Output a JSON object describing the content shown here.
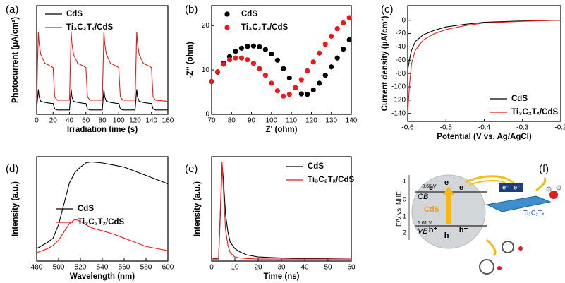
{
  "chart_data": [
    {
      "type": "line",
      "panel": "(a)",
      "xlabel": "Irradiation time (s)",
      "ylabel": "Photocurrent (μA/cm²)",
      "xlim": [
        0,
        160
      ],
      "ylim": [
        0,
        100
      ],
      "xticks": [
        0,
        20,
        40,
        60,
        80,
        100,
        120,
        140,
        160
      ],
      "legend": "upper left",
      "x": [
        0,
        2,
        3,
        5,
        10,
        18,
        20,
        22,
        25,
        40,
        42,
        43,
        45,
        50,
        58,
        60,
        62,
        65,
        80,
        82,
        83,
        85,
        90,
        98,
        100,
        102,
        105,
        120,
        122,
        123,
        125,
        130,
        138,
        140,
        142,
        145,
        160
      ],
      "series": [
        {
          "name": "CdS",
          "color": "#000000",
          "values": [
            5,
            23,
            16,
            12,
            11,
            10,
            10,
            5,
            4,
            4,
            23,
            16,
            12,
            11,
            10,
            10,
            5,
            4,
            4,
            23,
            16,
            12,
            11,
            10,
            10,
            5,
            4,
            4,
            23,
            16,
            12,
            11,
            10,
            10,
            5,
            4,
            4
          ]
        },
        {
          "name": "Ti₃C₂Tₓ/CdS",
          "color": "#e8191c",
          "values": [
            13,
            76,
            65,
            55,
            47,
            44,
            43,
            16,
            13,
            13,
            76,
            65,
            55,
            47,
            44,
            43,
            16,
            13,
            13,
            76,
            65,
            55,
            47,
            44,
            43,
            16,
            13,
            13,
            76,
            65,
            55,
            47,
            44,
            43,
            16,
            13,
            12
          ]
        }
      ]
    },
    {
      "type": "scatter",
      "panel": "(b)",
      "xlabel": "Z' (ohm)",
      "ylabel": "-Z'' (ohm)",
      "xlim": [
        70,
        140
      ],
      "ylim": [
        0,
        24.5
      ],
      "xticks": [
        70,
        80,
        90,
        100,
        110,
        120,
        130,
        140
      ],
      "yticks": [
        0,
        10,
        20
      ],
      "legend": "upper left",
      "x": [
        70,
        73,
        76,
        79,
        82,
        85,
        88,
        91,
        94,
        97,
        100,
        103,
        106,
        109,
        112,
        115,
        118,
        121,
        124,
        127,
        130,
        133,
        136,
        139
      ],
      "series": [
        {
          "name": "CdS",
          "color": "#000000",
          "values": [
            7.4,
            9.5,
            11.5,
            13,
            14.2,
            14.9,
            15.3,
            15.4,
            15.2,
            14.6,
            13.6,
            12.2,
            10.3,
            8.2,
            6.0,
            4.6,
            4.5,
            5.5,
            7.0,
            8.8,
            10.7,
            12.7,
            14.7,
            16.8
          ]
        },
        {
          "name": "Ti₃C₂Tₓ/CdS",
          "color": "#e8191c",
          "values": [
            7.4,
            9.6,
            11.3,
            12.3,
            12.7,
            12.7,
            12.3,
            11.5,
            10.3,
            8.8,
            7.0,
            5.3,
            4.1,
            4.5,
            6.0,
            7.8,
            9.8,
            11.8,
            13.8,
            15.8,
            17.6,
            19.3,
            20.6,
            21.8
          ]
        }
      ]
    },
    {
      "type": "line",
      "panel": "(c)",
      "xlabel": "Potential (V vs. Ag/AgCl)",
      "ylabel": "Current density (μA/cm²)",
      "xlim": [
        -0.6,
        -0.2
      ],
      "ylim": [
        -152,
        22
      ],
      "xticks": [
        -0.6,
        -0.5,
        -0.4,
        -0.3,
        -0.2
      ],
      "yticks": [
        -140,
        -120,
        -100,
        -80,
        -60,
        -40,
        -20,
        0
      ],
      "legend": "lower right",
      "x": [
        -0.6,
        -0.595,
        -0.59,
        -0.58,
        -0.56,
        -0.53,
        -0.5,
        -0.45,
        -0.4,
        -0.3,
        -0.2
      ],
      "series": [
        {
          "name": "CdS",
          "color": "#000000",
          "values": [
            -75,
            -58,
            -45,
            -32,
            -22,
            -15,
            -10,
            -6,
            -3,
            -1,
            0
          ]
        },
        {
          "name": "Ti₃C₂Tₓ/CdS",
          "color": "#e8191c",
          "values": [
            -140,
            -95,
            -65,
            -45,
            -30,
            -20,
            -14,
            -8,
            -4,
            -1.5,
            0
          ]
        }
      ]
    },
    {
      "type": "line",
      "panel": "(d)",
      "xlabel": "Wavelength (nm)",
      "ylabel": "Intensity (a.u.)",
      "xlim": [
        480,
        600
      ],
      "ylim": [
        0,
        100
      ],
      "xticks": [
        480,
        500,
        520,
        540,
        560,
        580,
        600
      ],
      "legend": "center",
      "x": [
        480,
        490,
        495,
        500,
        505,
        510,
        515,
        520,
        525,
        530,
        540,
        550,
        560,
        570,
        580,
        590,
        600
      ],
      "series": [
        {
          "name": "CdS",
          "color": "#000000",
          "values": [
            12,
            18,
            22,
            35,
            55,
            75,
            85,
            90,
            94,
            95,
            94,
            92,
            90,
            86,
            82,
            78,
            74
          ]
        },
        {
          "name": "Ti₃C₂Tₓ/CdS",
          "color": "#e8191c",
          "values": [
            8,
            12,
            15,
            20,
            28,
            36,
            40,
            38,
            35,
            32,
            29,
            26,
            22,
            18,
            14,
            12,
            10
          ]
        }
      ]
    },
    {
      "type": "line",
      "panel": "(e)",
      "xlabel": "Time (ns)",
      "ylabel": "Intensity (a.u.)",
      "xlim": [
        0,
        60
      ],
      "ylim": [
        0,
        100
      ],
      "xticks": [
        0,
        10,
        20,
        30,
        40,
        50,
        60
      ],
      "legend": "upper right",
      "x": [
        0,
        3,
        4,
        4.5,
        5,
        6,
        7,
        8,
        10,
        12,
        15,
        20,
        30,
        40,
        60
      ],
      "series": [
        {
          "name": "CdS",
          "color": "#000000",
          "values": [
            2,
            3,
            60,
            92,
            80,
            45,
            28,
            18,
            12,
            9,
            6,
            4,
            3,
            2.5,
            2
          ]
        },
        {
          "name": "Ti₃C₂Tₓ/CdS",
          "color": "#e8191c",
          "values": [
            2,
            2,
            65,
            95,
            70,
            30,
            15,
            8,
            4,
            3,
            2.5,
            2,
            2,
            2,
            2
          ]
        }
      ]
    }
  ],
  "diagram": {
    "panel": "(f)",
    "axis_label": "E/V vs. NHE",
    "ticks": [
      "-1",
      "0",
      "1",
      "2"
    ],
    "cb_potential": "-0.65 V",
    "cb": "CB",
    "vb_potential": "1.61 V",
    "vb": "VB",
    "semiconductor": "CdS",
    "electron": "e⁻",
    "hole": "h⁺",
    "cocatalyst": "Ti₃C₂Tₓ"
  }
}
